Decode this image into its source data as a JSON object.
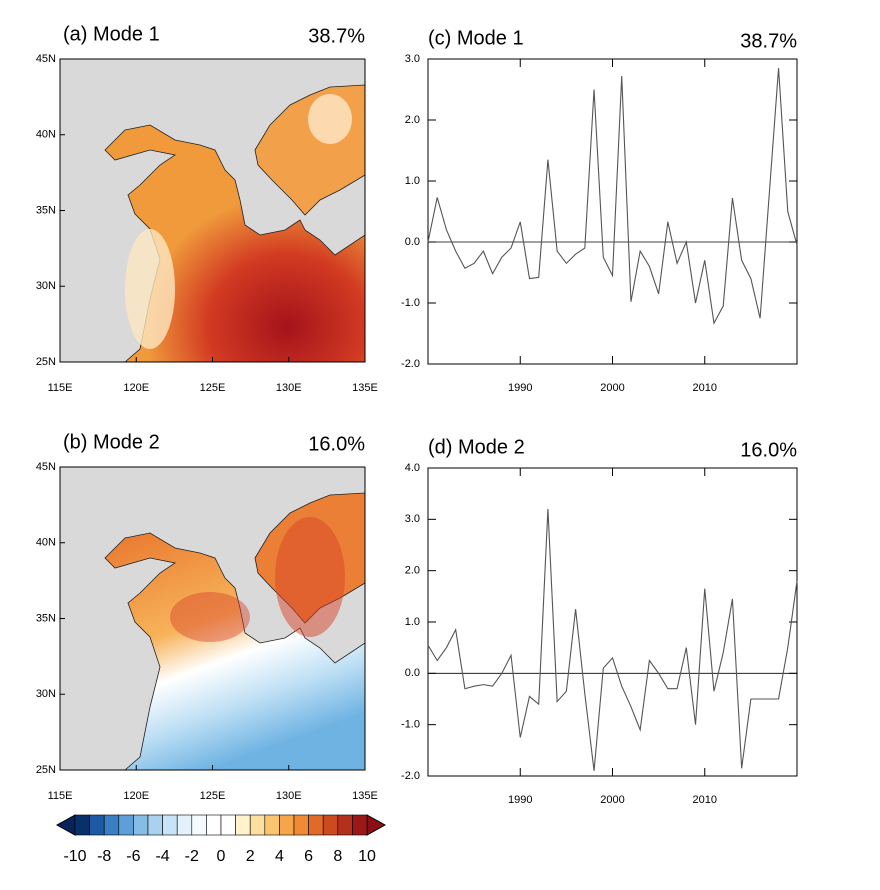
{
  "maps": [
    {
      "title": "(a) Mode 1",
      "percent": "38.7%"
    },
    {
      "title": "(b) Mode 2",
      "percent": "16.0%"
    }
  ],
  "map_axes": {
    "lon_labels": [
      "115E",
      "120E",
      "125E",
      "130E",
      "135E"
    ],
    "lat_labels": [
      "25N",
      "30N",
      "35N",
      "40N",
      "45N"
    ]
  },
  "colorbar": {
    "labels": [
      "-10",
      "-8",
      "-6",
      "-4",
      "-2",
      "0",
      "2",
      "4",
      "6",
      "8",
      "10"
    ]
  },
  "chart_data": [
    {
      "type": "line",
      "title": "(c) Mode 1",
      "annotation": "38.7%",
      "color": "#555555",
      "x": [
        1980,
        1981,
        1982,
        1983,
        1984,
        1985,
        1986,
        1987,
        1988,
        1989,
        1990,
        1991,
        1992,
        1993,
        1994,
        1995,
        1996,
        1997,
        1998,
        1999,
        2000,
        2001,
        2002,
        2003,
        2004,
        2005,
        2006,
        2007,
        2008,
        2009,
        2010,
        2011,
        2012,
        2013,
        2014,
        2015,
        2016,
        2017,
        2018,
        2019,
        2020
      ],
      "values": [
        0.0,
        0.73,
        0.2,
        -0.15,
        -0.43,
        -0.35,
        -0.15,
        -0.52,
        -0.25,
        -0.1,
        0.33,
        -0.6,
        -0.58,
        1.35,
        -0.15,
        -0.35,
        -0.2,
        -0.1,
        2.5,
        -0.25,
        -0.55,
        2.72,
        -0.98,
        -0.15,
        -0.4,
        -0.85,
        0.33,
        -0.35,
        0.0,
        -1.0,
        -0.3,
        -1.33,
        -1.05,
        0.72,
        -0.3,
        -0.6,
        -1.25,
        0.8,
        2.85,
        0.5,
        -0.05
      ],
      "xlim": [
        1980,
        2020
      ],
      "ylim": [
        -2,
        3
      ],
      "xticks": [
        1990,
        2000,
        2010
      ],
      "yticks": [
        {
          "value": -2,
          "label": "-2.0"
        },
        {
          "value": -1,
          "label": "-1.0"
        },
        {
          "value": 0,
          "label": "0.0"
        },
        {
          "value": 1,
          "label": "1.0"
        },
        {
          "value": 2,
          "label": "2.0"
        },
        {
          "value": 3,
          "label": "3.0"
        }
      ]
    },
    {
      "type": "line",
      "title": "(d) Mode 2",
      "annotation": "16.0%",
      "color": "#555555",
      "x": [
        1980,
        1981,
        1982,
        1983,
        1984,
        1985,
        1986,
        1987,
        1988,
        1989,
        1990,
        1991,
        1992,
        1993,
        1994,
        1995,
        1996,
        1997,
        1998,
        1999,
        2000,
        2001,
        2002,
        2003,
        2004,
        2005,
        2006,
        2007,
        2008,
        2009,
        2010,
        2011,
        2012,
        2013,
        2014,
        2015,
        2016,
        2017,
        2018,
        2019,
        2020
      ],
      "values": [
        0.55,
        0.25,
        0.5,
        0.85,
        -0.3,
        -0.25,
        -0.22,
        -0.25,
        0.0,
        0.35,
        -1.25,
        -0.45,
        -0.6,
        3.2,
        -0.55,
        -0.35,
        1.25,
        -0.4,
        -1.9,
        0.1,
        0.3,
        -0.25,
        -0.65,
        -1.1,
        0.25,
        0.0,
        -0.3,
        -0.3,
        0.5,
        -1.0,
        1.65,
        -0.35,
        0.4,
        1.45,
        -1.85,
        -0.5,
        -0.5,
        -0.5,
        -0.5,
        0.5,
        1.8
      ],
      "xlim": [
        1980,
        2020
      ],
      "ylim": [
        -2,
        4
      ],
      "xticks": [
        1990,
        2000,
        2010
      ],
      "yticks": [
        {
          "value": -2,
          "label": "-2.0"
        },
        {
          "value": -1,
          "label": "-1.0"
        },
        {
          "value": 0,
          "label": "0.0"
        },
        {
          "value": 1,
          "label": "1.0"
        },
        {
          "value": 2,
          "label": "2.0"
        },
        {
          "value": 3,
          "label": "3.0"
        },
        {
          "value": 4,
          "label": "4.0"
        }
      ]
    }
  ]
}
